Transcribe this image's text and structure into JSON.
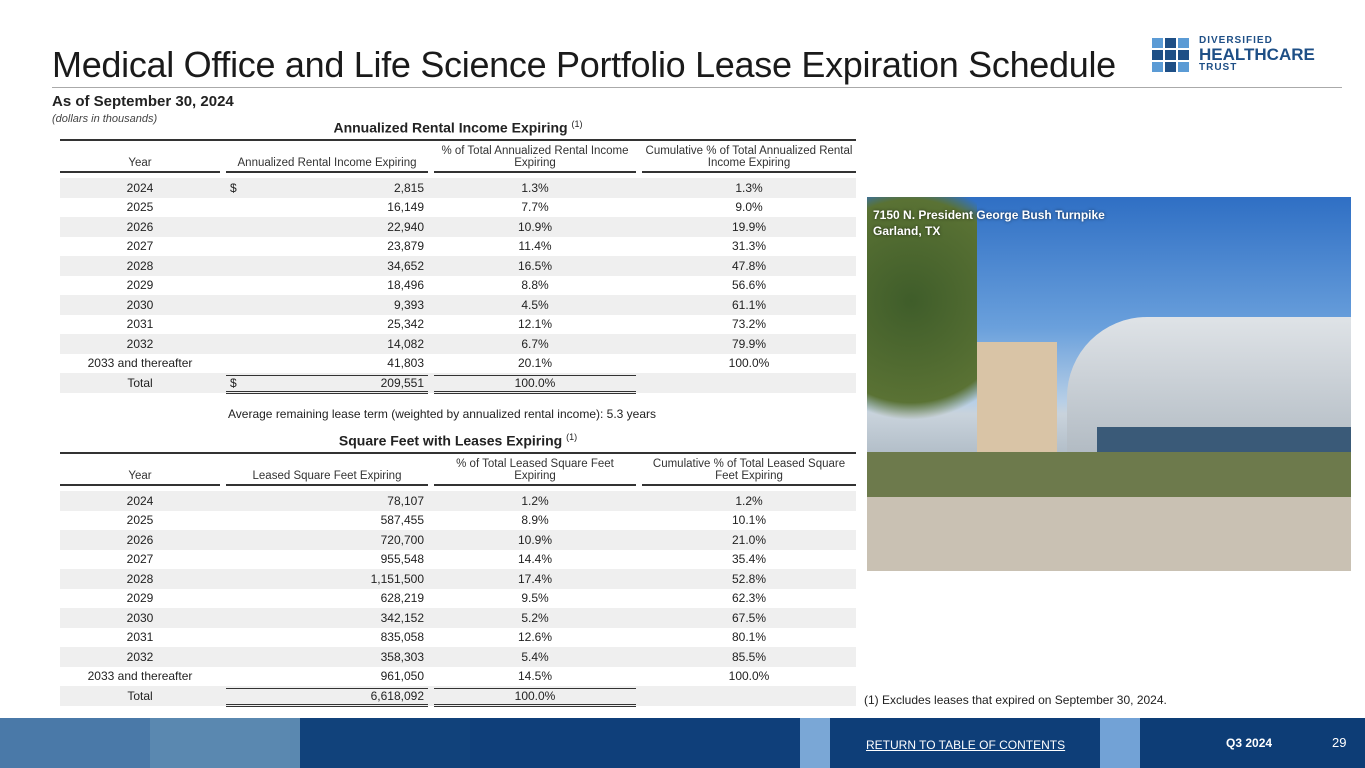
{
  "header": {
    "title": "Medical Office and Life Science Portfolio Lease Expiration Schedule",
    "as_of": "As of September 30, 2024",
    "units": "(dollars in thousands)"
  },
  "logo": {
    "line1": "DIVERSIFIED",
    "line2": "HEALTHCARE",
    "line3": "TRUST",
    "colors": [
      "#5b9bd5",
      "#1e4f86"
    ]
  },
  "rental": {
    "title": "Annualized Rental Income Expiring",
    "footnote_ref": "(1)",
    "headers": [
      "Year",
      "Annualized Rental Income Expiring",
      "% of Total Annualized Rental Income Expiring",
      "Cumulative % of Total Annualized Rental Income Expiring"
    ],
    "rows": [
      [
        "2024",
        "2,815",
        "1.3%",
        "1.3%"
      ],
      [
        "2025",
        "16,149",
        "7.7%",
        "9.0%"
      ],
      [
        "2026",
        "22,940",
        "10.9%",
        "19.9%"
      ],
      [
        "2027",
        "23,879",
        "11.4%",
        "31.3%"
      ],
      [
        "2028",
        "34,652",
        "16.5%",
        "47.8%"
      ],
      [
        "2029",
        "18,496",
        "8.8%",
        "56.6%"
      ],
      [
        "2030",
        "9,393",
        "4.5%",
        "61.1%"
      ],
      [
        "2031",
        "25,342",
        "12.1%",
        "73.2%"
      ],
      [
        "2032",
        "14,082",
        "6.7%",
        "79.9%"
      ],
      [
        "2033 and thereafter",
        "41,803",
        "20.1%",
        "100.0%"
      ],
      [
        "Total",
        "209,551",
        "100.0%",
        ""
      ]
    ],
    "currency": "$"
  },
  "avg_term": "Average remaining lease term (weighted by annualized rental income): 5.3 years",
  "sqft": {
    "title": "Square Feet with Leases Expiring",
    "footnote_ref": "(1)",
    "headers": [
      "Year",
      "Leased Square Feet Expiring",
      "% of Total Leased Square Feet Expiring",
      "Cumulative % of Total Leased Square Feet Expiring"
    ],
    "rows": [
      [
        "2024",
        "78,107",
        "1.2%",
        "1.2%"
      ],
      [
        "2025",
        "587,455",
        "8.9%",
        "10.1%"
      ],
      [
        "2026",
        "720,700",
        "10.9%",
        "21.0%"
      ],
      [
        "2027",
        "955,548",
        "14.4%",
        "35.4%"
      ],
      [
        "2028",
        "1,151,500",
        "17.4%",
        "52.8%"
      ],
      [
        "2029",
        "628,219",
        "9.5%",
        "62.3%"
      ],
      [
        "2030",
        "342,152",
        "5.2%",
        "67.5%"
      ],
      [
        "2031",
        "835,058",
        "12.6%",
        "80.1%"
      ],
      [
        "2032",
        "358,303",
        "5.4%",
        "85.5%"
      ],
      [
        "2033 and thereafter",
        "961,050",
        "14.5%",
        "100.0%"
      ],
      [
        "Total",
        "6,618,092",
        "100.0%",
        ""
      ]
    ]
  },
  "photo": {
    "caption_line1": "7150 N. President George Bush Turnpike",
    "caption_line2": "Garland, TX"
  },
  "footnote": "(1)   Excludes leases that expired on September 30, 2024.",
  "footer": {
    "link": "RETURN TO TABLE OF CONTENTS",
    "quarter": "Q3 2024",
    "page": "29"
  }
}
